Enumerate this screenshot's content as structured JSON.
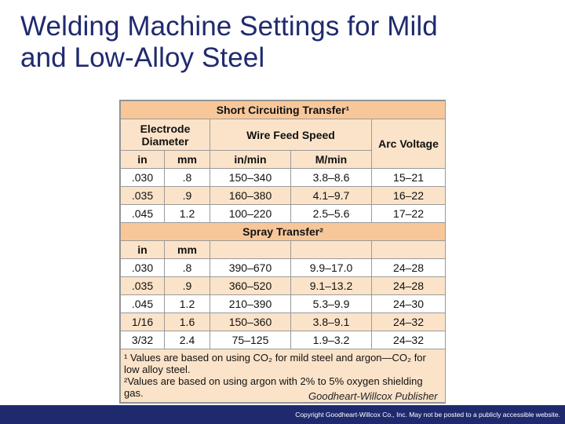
{
  "title": {
    "line1": "Welding Machine Settings for Mild",
    "line2": "and Low-Alloy Steel"
  },
  "table": {
    "section1_title": "Short Circuiting Transfer¹",
    "electrode_diameter": "Electrode Diameter",
    "wire_feed_speed": "Wire Feed Speed",
    "arc_voltage": "Arc Voltage",
    "units": [
      "in",
      "mm",
      "in/min",
      "M/min"
    ],
    "section1_rows": [
      [
        ".030",
        ".8",
        "150–340",
        "3.8–8.6",
        "15–21"
      ],
      [
        ".035",
        ".9",
        "160–380",
        "4.1–9.7",
        "16–22"
      ],
      [
        ".045",
        "1.2",
        "100–220",
        "2.5–5.6",
        "17–22"
      ]
    ],
    "section2_title": "Spray Transfer²",
    "section2_units": [
      "in",
      "mm"
    ],
    "section2_rows": [
      [
        ".030",
        ".8",
        "390–670",
        "9.9–17.0",
        "24–28"
      ],
      [
        ".035",
        ".9",
        "360–520",
        "9.1–13.2",
        "24–28"
      ],
      [
        ".045",
        "1.2",
        "210–390",
        "5.3–9.9",
        "24–30"
      ],
      [
        "1/16",
        "1.6",
        "150–360",
        "3.8–9.1",
        "24–32"
      ],
      [
        "3/32",
        "2.4",
        "75–125",
        "1.9–3.2",
        "24–32"
      ]
    ],
    "footnote1": "¹ Values are based on using CO₂ for mild steel and argon—CO₂ for low alloy steel.",
    "footnote2": "²Values are based on using argon with 2% to 5% oxygen shielding gas."
  },
  "credit": "Goodheart-Willcox Publisher",
  "footer": "Copyright Goodheart-Willcox Co., Inc.  May not be posted to a publicly accessible website.",
  "colors": {
    "title": "#1f2a6e",
    "band": "#f7c79a",
    "shade": "#fbe3c9",
    "footer_bar": "#1f2a6e"
  }
}
